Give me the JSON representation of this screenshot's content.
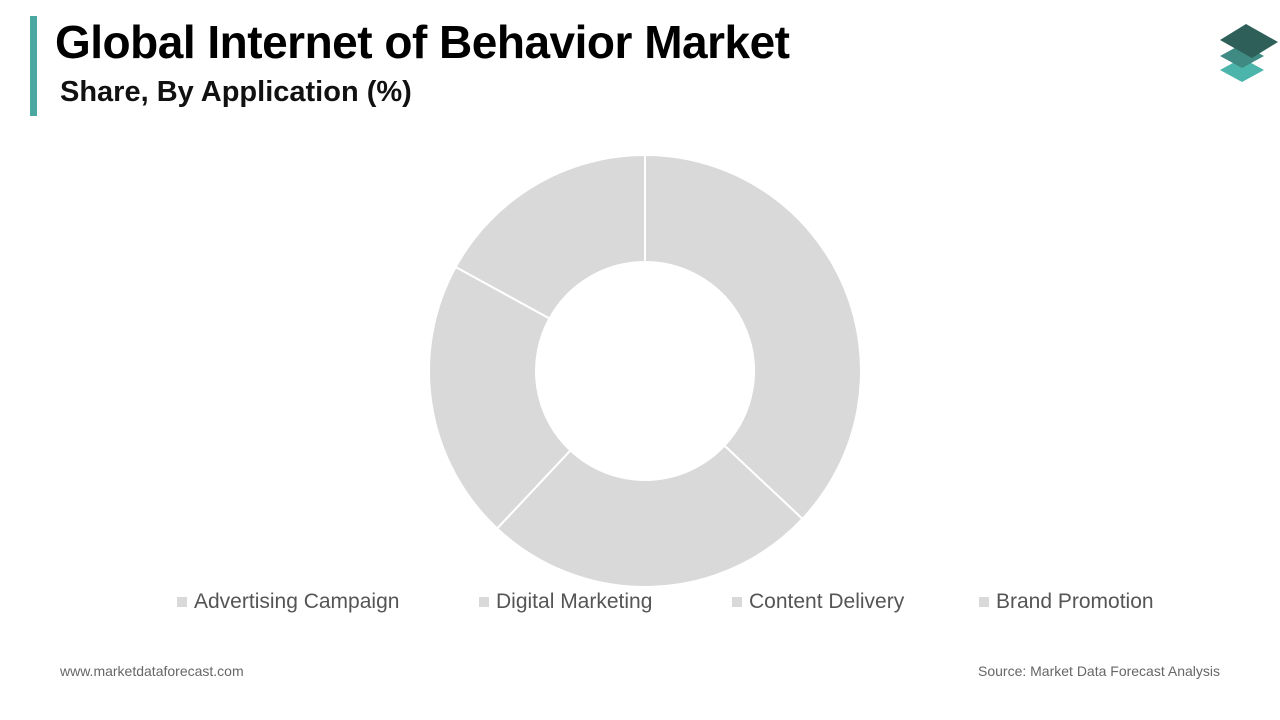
{
  "header": {
    "title": "Global Internet of Behavior Market",
    "subtitle": "Share, By Application (%)"
  },
  "colors": {
    "accent": "#4aa8a0",
    "slice": "#d9d9d9",
    "legend_swatch": "#d9d9d9",
    "logo_top": "#2f5f59",
    "logo_mid": "#3f8a82",
    "logo_bottom": "#4bb5ab"
  },
  "logo": {
    "icon": "stacked-layers-icon"
  },
  "chart_data": {
    "type": "pie",
    "variant": "donut",
    "title": "",
    "categories": [
      "Advertising Campaign",
      "Digital Marketing",
      "Content Delivery",
      "Brand Promotion"
    ],
    "values": [
      37,
      25,
      21,
      17
    ],
    "start_angle_deg": 0,
    "direction": "clockwise",
    "data_labels": false,
    "legend_position": "bottom"
  },
  "footer": {
    "website": "www.marketdataforecast.com",
    "source": "Source: Market Data Forecast Analysis"
  }
}
